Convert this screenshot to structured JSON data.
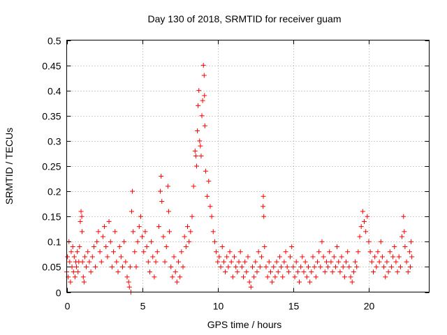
{
  "chart_data": {
    "type": "scatter",
    "title": "Day 130 of 2018, SRMTID for receiver guam",
    "xlabel": "GPS time / hours",
    "ylabel": "SRMTID / TECUs",
    "xlim": [
      0,
      24
    ],
    "ylim": [
      0,
      0.5
    ],
    "x_ticks": [
      0,
      5,
      10,
      15,
      20
    ],
    "x_tick_labels": [
      "0",
      "5",
      "10",
      "15",
      "20"
    ],
    "y_ticks": [
      0,
      0.05,
      0.1,
      0.15,
      0.2,
      0.25,
      0.3,
      0.35,
      0.4,
      0.45,
      0.5
    ],
    "y_tick_labels": [
      "0",
      "0.05",
      "0.1",
      "0.15",
      "0.2",
      "0.25",
      "0.3",
      "0.35",
      "0.4",
      "0.45",
      "0.5"
    ],
    "grid": true,
    "marker": "plus",
    "series": [
      {
        "name": "SRMTID",
        "color": "#ff0000",
        "points": [
          [
            0.0,
            0.04
          ],
          [
            0.05,
            0.07
          ],
          [
            0.1,
            0.03
          ],
          [
            0.15,
            0.1
          ],
          [
            0.2,
            0.06
          ],
          [
            0.25,
            0.02
          ],
          [
            0.3,
            0.08
          ],
          [
            0.35,
            0.05
          ],
          [
            0.4,
            0.09
          ],
          [
            0.45,
            0.04
          ],
          [
            0.5,
            0.07
          ],
          [
            0.55,
            0.03
          ],
          [
            0.6,
            0.06
          ],
          [
            0.65,
            0.05
          ],
          [
            0.7,
            0.08
          ],
          [
            0.75,
            0.04
          ],
          [
            0.8,
            0.06
          ],
          [
            0.85,
            0.09
          ],
          [
            0.9,
            0.14
          ],
          [
            0.95,
            0.16
          ],
          [
            1.0,
            0.15
          ],
          [
            1.02,
            0.12
          ],
          [
            1.05,
            0.06
          ],
          [
            1.1,
            0.03
          ],
          [
            1.15,
            0.02
          ],
          [
            1.2,
            0.07
          ],
          [
            1.3,
            0.05
          ],
          [
            1.4,
            0.08
          ],
          [
            1.5,
            0.06
          ],
          [
            1.6,
            0.04
          ],
          [
            1.7,
            0.07
          ],
          [
            1.8,
            0.09
          ],
          [
            1.9,
            0.05
          ],
          [
            2.0,
            0.1
          ],
          [
            2.1,
            0.12
          ],
          [
            2.2,
            0.08
          ],
          [
            2.3,
            0.06
          ],
          [
            2.4,
            0.11
          ],
          [
            2.5,
            0.13
          ],
          [
            2.6,
            0.09
          ],
          [
            2.7,
            0.07
          ],
          [
            2.8,
            0.14
          ],
          [
            2.9,
            0.1
          ],
          [
            3.0,
            0.05
          ],
          [
            3.1,
            0.08
          ],
          [
            3.2,
            0.12
          ],
          [
            3.3,
            0.06
          ],
          [
            3.4,
            0.04
          ],
          [
            3.5,
            0.09
          ],
          [
            3.6,
            0.07
          ],
          [
            3.7,
            0.05
          ],
          [
            3.8,
            0.1
          ],
          [
            3.9,
            0.06
          ],
          [
            4.0,
            0.03
          ],
          [
            4.1,
            0.02
          ],
          [
            4.15,
            0.01
          ],
          [
            4.2,
            0.05
          ],
          [
            4.25,
            0.0
          ],
          [
            4.3,
            0.16
          ],
          [
            4.35,
            0.2
          ],
          [
            4.4,
            0.12
          ],
          [
            4.5,
            0.08
          ],
          [
            4.6,
            0.05
          ],
          [
            4.7,
            0.1
          ],
          [
            4.8,
            0.13
          ],
          [
            4.9,
            0.15
          ],
          [
            5.0,
            0.11
          ],
          [
            5.1,
            0.08
          ],
          [
            5.2,
            0.12
          ],
          [
            5.3,
            0.09
          ],
          [
            5.4,
            0.06
          ],
          [
            5.5,
            0.04
          ],
          [
            5.6,
            0.1
          ],
          [
            5.7,
            0.07
          ],
          [
            5.8,
            0.03
          ],
          [
            5.9,
            0.06
          ],
          [
            6.0,
            0.08
          ],
          [
            6.1,
            0.13
          ],
          [
            6.2,
            0.2
          ],
          [
            6.25,
            0.23
          ],
          [
            6.3,
            0.18
          ],
          [
            6.4,
            0.11
          ],
          [
            6.5,
            0.06
          ],
          [
            6.6,
            0.09
          ],
          [
            6.7,
            0.21
          ],
          [
            6.75,
            0.16
          ],
          [
            6.8,
            0.12
          ],
          [
            6.9,
            0.05
          ],
          [
            7.0,
            0.03
          ],
          [
            7.1,
            0.07
          ],
          [
            7.2,
            0.04
          ],
          [
            7.3,
            0.02
          ],
          [
            7.4,
            0.06
          ],
          [
            7.5,
            0.03
          ],
          [
            7.6,
            0.08
          ],
          [
            7.7,
            0.05
          ],
          [
            7.8,
            0.11
          ],
          [
            7.9,
            0.09
          ],
          [
            8.0,
            0.13
          ],
          [
            8.1,
            0.1
          ],
          [
            8.2,
            0.12
          ],
          [
            8.3,
            0.15
          ],
          [
            8.4,
            0.21
          ],
          [
            8.5,
            0.28
          ],
          [
            8.55,
            0.27
          ],
          [
            8.6,
            0.25
          ],
          [
            8.65,
            0.32
          ],
          [
            8.7,
            0.37
          ],
          [
            8.75,
            0.4
          ],
          [
            8.8,
            0.3
          ],
          [
            8.85,
            0.29
          ],
          [
            8.9,
            0.27
          ],
          [
            8.95,
            0.35
          ],
          [
            9.0,
            0.38
          ],
          [
            9.05,
            0.45
          ],
          [
            9.1,
            0.43
          ],
          [
            9.12,
            0.39
          ],
          [
            9.15,
            0.33
          ],
          [
            9.2,
            0.24
          ],
          [
            9.3,
            0.19
          ],
          [
            9.4,
            0.22
          ],
          [
            9.5,
            0.17
          ],
          [
            9.6,
            0.15
          ],
          [
            9.7,
            0.12
          ],
          [
            9.8,
            0.1
          ],
          [
            9.9,
            0.08
          ],
          [
            10.0,
            0.06
          ],
          [
            10.1,
            0.07
          ],
          [
            10.2,
            0.05
          ],
          [
            10.3,
            0.09
          ],
          [
            10.4,
            0.06
          ],
          [
            10.5,
            0.04
          ],
          [
            10.6,
            0.07
          ],
          [
            10.7,
            0.05
          ],
          [
            10.8,
            0.08
          ],
          [
            10.9,
            0.06
          ],
          [
            11.0,
            0.03
          ],
          [
            11.1,
            0.07
          ],
          [
            11.2,
            0.05
          ],
          [
            11.3,
            0.04
          ],
          [
            11.4,
            0.06
          ],
          [
            11.5,
            0.08
          ],
          [
            11.6,
            0.05
          ],
          [
            11.7,
            0.03
          ],
          [
            11.8,
            0.06
          ],
          [
            11.9,
            0.04
          ],
          [
            12.0,
            0.07
          ],
          [
            12.1,
            0.02
          ],
          [
            12.2,
            0.01
          ],
          [
            12.3,
            0.05
          ],
          [
            12.4,
            0.03
          ],
          [
            12.5,
            0.06
          ],
          [
            12.6,
            0.04
          ],
          [
            12.7,
            0.08
          ],
          [
            12.8,
            0.05
          ],
          [
            12.9,
            0.07
          ],
          [
            13.0,
            0.17
          ],
          [
            13.02,
            0.19
          ],
          [
            13.05,
            0.15
          ],
          [
            13.1,
            0.09
          ],
          [
            13.2,
            0.05
          ],
          [
            13.3,
            0.03
          ],
          [
            13.4,
            0.06
          ],
          [
            13.5,
            0.04
          ],
          [
            13.6,
            0.02
          ],
          [
            13.7,
            0.05
          ],
          [
            13.8,
            0.03
          ],
          [
            13.9,
            0.06
          ],
          [
            14.0,
            0.04
          ],
          [
            14.1,
            0.07
          ],
          [
            14.2,
            0.05
          ],
          [
            14.3,
            0.03
          ],
          [
            14.4,
            0.06
          ],
          [
            14.5,
            0.08
          ],
          [
            14.6,
            0.05
          ],
          [
            14.7,
            0.04
          ],
          [
            14.8,
            0.07
          ],
          [
            14.9,
            0.09
          ],
          [
            15.0,
            0.05
          ],
          [
            15.1,
            0.03
          ],
          [
            15.2,
            0.06
          ],
          [
            15.3,
            0.04
          ],
          [
            15.4,
            0.02
          ],
          [
            15.5,
            0.05
          ],
          [
            15.6,
            0.07
          ],
          [
            15.7,
            0.04
          ],
          [
            15.8,
            0.06
          ],
          [
            15.9,
            0.03
          ],
          [
            16.0,
            0.05
          ],
          [
            16.1,
            0.02
          ],
          [
            16.2,
            0.04
          ],
          [
            16.3,
            0.07
          ],
          [
            16.4,
            0.05
          ],
          [
            16.5,
            0.03
          ],
          [
            16.6,
            0.06
          ],
          [
            16.7,
            0.08
          ],
          [
            16.8,
            0.05
          ],
          [
            16.9,
            0.1
          ],
          [
            17.0,
            0.07
          ],
          [
            17.1,
            0.04
          ],
          [
            17.2,
            0.06
          ],
          [
            17.3,
            0.05
          ],
          [
            17.4,
            0.08
          ],
          [
            17.5,
            0.06
          ],
          [
            17.6,
            0.04
          ],
          [
            17.7,
            0.07
          ],
          [
            17.8,
            0.05
          ],
          [
            17.9,
            0.09
          ],
          [
            18.0,
            0.06
          ],
          [
            18.1,
            0.04
          ],
          [
            18.2,
            0.07
          ],
          [
            18.3,
            0.05
          ],
          [
            18.4,
            0.03
          ],
          [
            18.5,
            0.06
          ],
          [
            18.6,
            0.08
          ],
          [
            18.7,
            0.05
          ],
          [
            18.8,
            0.03
          ],
          [
            18.9,
            0.02
          ],
          [
            19.0,
            0.04
          ],
          [
            19.1,
            0.06
          ],
          [
            19.2,
            0.05
          ],
          [
            19.3,
            0.08
          ],
          [
            19.4,
            0.11
          ],
          [
            19.5,
            0.13
          ],
          [
            19.6,
            0.16
          ],
          [
            19.7,
            0.14
          ],
          [
            19.8,
            0.12
          ],
          [
            19.9,
            0.15
          ],
          [
            20.0,
            0.1
          ],
          [
            20.1,
            0.08
          ],
          [
            20.2,
            0.06
          ],
          [
            20.3,
            0.04
          ],
          [
            20.4,
            0.07
          ],
          [
            20.5,
            0.05
          ],
          [
            20.6,
            0.08
          ],
          [
            20.7,
            0.06
          ],
          [
            20.8,
            0.1
          ],
          [
            20.9,
            0.07
          ],
          [
            21.0,
            0.05
          ],
          [
            21.1,
            0.03
          ],
          [
            21.2,
            0.06
          ],
          [
            21.3,
            0.04
          ],
          [
            21.4,
            0.08
          ],
          [
            21.5,
            0.05
          ],
          [
            21.6,
            0.07
          ],
          [
            21.7,
            0.09
          ],
          [
            21.8,
            0.06
          ],
          [
            21.9,
            0.04
          ],
          [
            22.0,
            0.07
          ],
          [
            22.1,
            0.05
          ],
          [
            22.2,
            0.11
          ],
          [
            22.3,
            0.15
          ],
          [
            22.35,
            0.12
          ],
          [
            22.4,
            0.09
          ],
          [
            22.5,
            0.06
          ],
          [
            22.6,
            0.04
          ],
          [
            22.7,
            0.08
          ],
          [
            22.75,
            0.05
          ],
          [
            22.8,
            0.1
          ],
          [
            22.85,
            0.07
          ]
        ]
      }
    ]
  }
}
